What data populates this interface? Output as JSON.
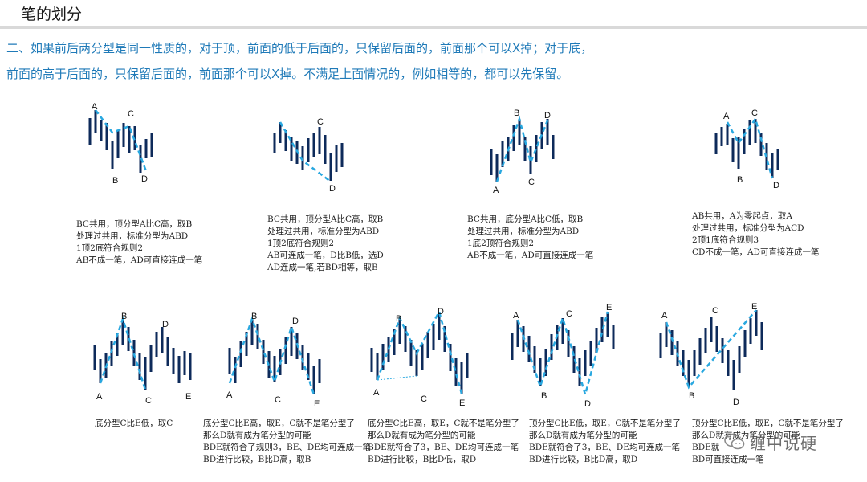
{
  "header": {
    "title": "笔的划分"
  },
  "intro": {
    "line1": "二、如果前后两分型是同一性质的，对于顶，前面的低于后面的，只保留后面的，前面那个可以X掉；对于底，",
    "line2": "前面的高于后面的，只保留后面的，前面那个可以X掉。不满足上面情况的，例如相等的，都可以先保留。"
  },
  "colors": {
    "accent": "#1f7ab8",
    "bar": "#0d2a5a",
    "dashed": "#29a8e0"
  },
  "diagrams": [
    {
      "labels": [
        "A",
        "B",
        "C",
        "D"
      ],
      "notes": [
        "BC共用，顶分型A比C高，取B",
        "处理过共用，标准分型为ABD",
        "1顶2底符合规则2",
        "AB不成一笔，AD可直接连成一笔"
      ]
    },
    {
      "labels": [
        "D",
        "C"
      ],
      "notes": [
        "BC共用，顶分型A比C高，取B",
        "处理过共用，标准分型为ABD",
        "1顶2底符合规则2",
        "AB可连成一笔，D比B低，选D",
        "AD连成一笔,若BD相等，取B"
      ]
    },
    {
      "labels": [
        "A",
        "B",
        "C",
        "D"
      ],
      "notes": [
        "BC共用，底分型A比C低，取B",
        "处理过共用，标准分型为ABD",
        "1底2顶符合规则2",
        "AB不成一笔，AD可直接连成一笔"
      ]
    },
    {
      "labels": [
        "A",
        "B",
        "C",
        "D"
      ],
      "notes": [
        "AB共用，A为零起点，取A",
        "处理过共用，标准分型为ACD",
        "2顶1底符合规则3",
        "CD不成一笔，AD可直接连成一笔"
      ]
    },
    {
      "labels": [
        "A",
        "B",
        "C",
        "D",
        "E"
      ],
      "notes": [
        "底分型C比E低，取C"
      ]
    },
    {
      "labels": [
        "A",
        "B",
        "C",
        "D",
        "E"
      ],
      "notes": [
        "底分型C比E高，取E，C就不是笔分型了",
        "那么D就有成为笔分型的可能",
        "BDE就符合了规则3，BE、DE均可连成一笔",
        "BD进行比较，B比D高，取B"
      ]
    },
    {
      "labels": [
        "A",
        "B",
        "C",
        "D",
        "E"
      ],
      "notes": [
        "底分型C比E高，取E，C就不是笔分型了",
        "那么D就有成为笔分型的可能",
        "BDE就符合了3，BE、DE均可连成一笔",
        "BD进行比较，B比D低，取D"
      ]
    },
    {
      "labels": [
        "A",
        "B",
        "C",
        "D",
        "E"
      ],
      "notes": [
        "顶分型C比E低，取E，C就不是笔分型了",
        "那么D就有成为笔分型的可能",
        "BDE就符合了3，BE、DE均可连成一笔",
        "BD进行比较，B比D高，取D"
      ]
    },
    {
      "labels": [
        "A",
        "B",
        "C",
        "D",
        "E"
      ],
      "notes": [
        "顶分型C比E低，取E，C就不是笔分型了",
        "那么D就有成为笔分型的可能",
        "BDE就",
        "BD可直接连成一笔"
      ]
    }
  ],
  "watermark": {
    "text": "缠中说硬",
    "icon": "wechat-icon"
  }
}
